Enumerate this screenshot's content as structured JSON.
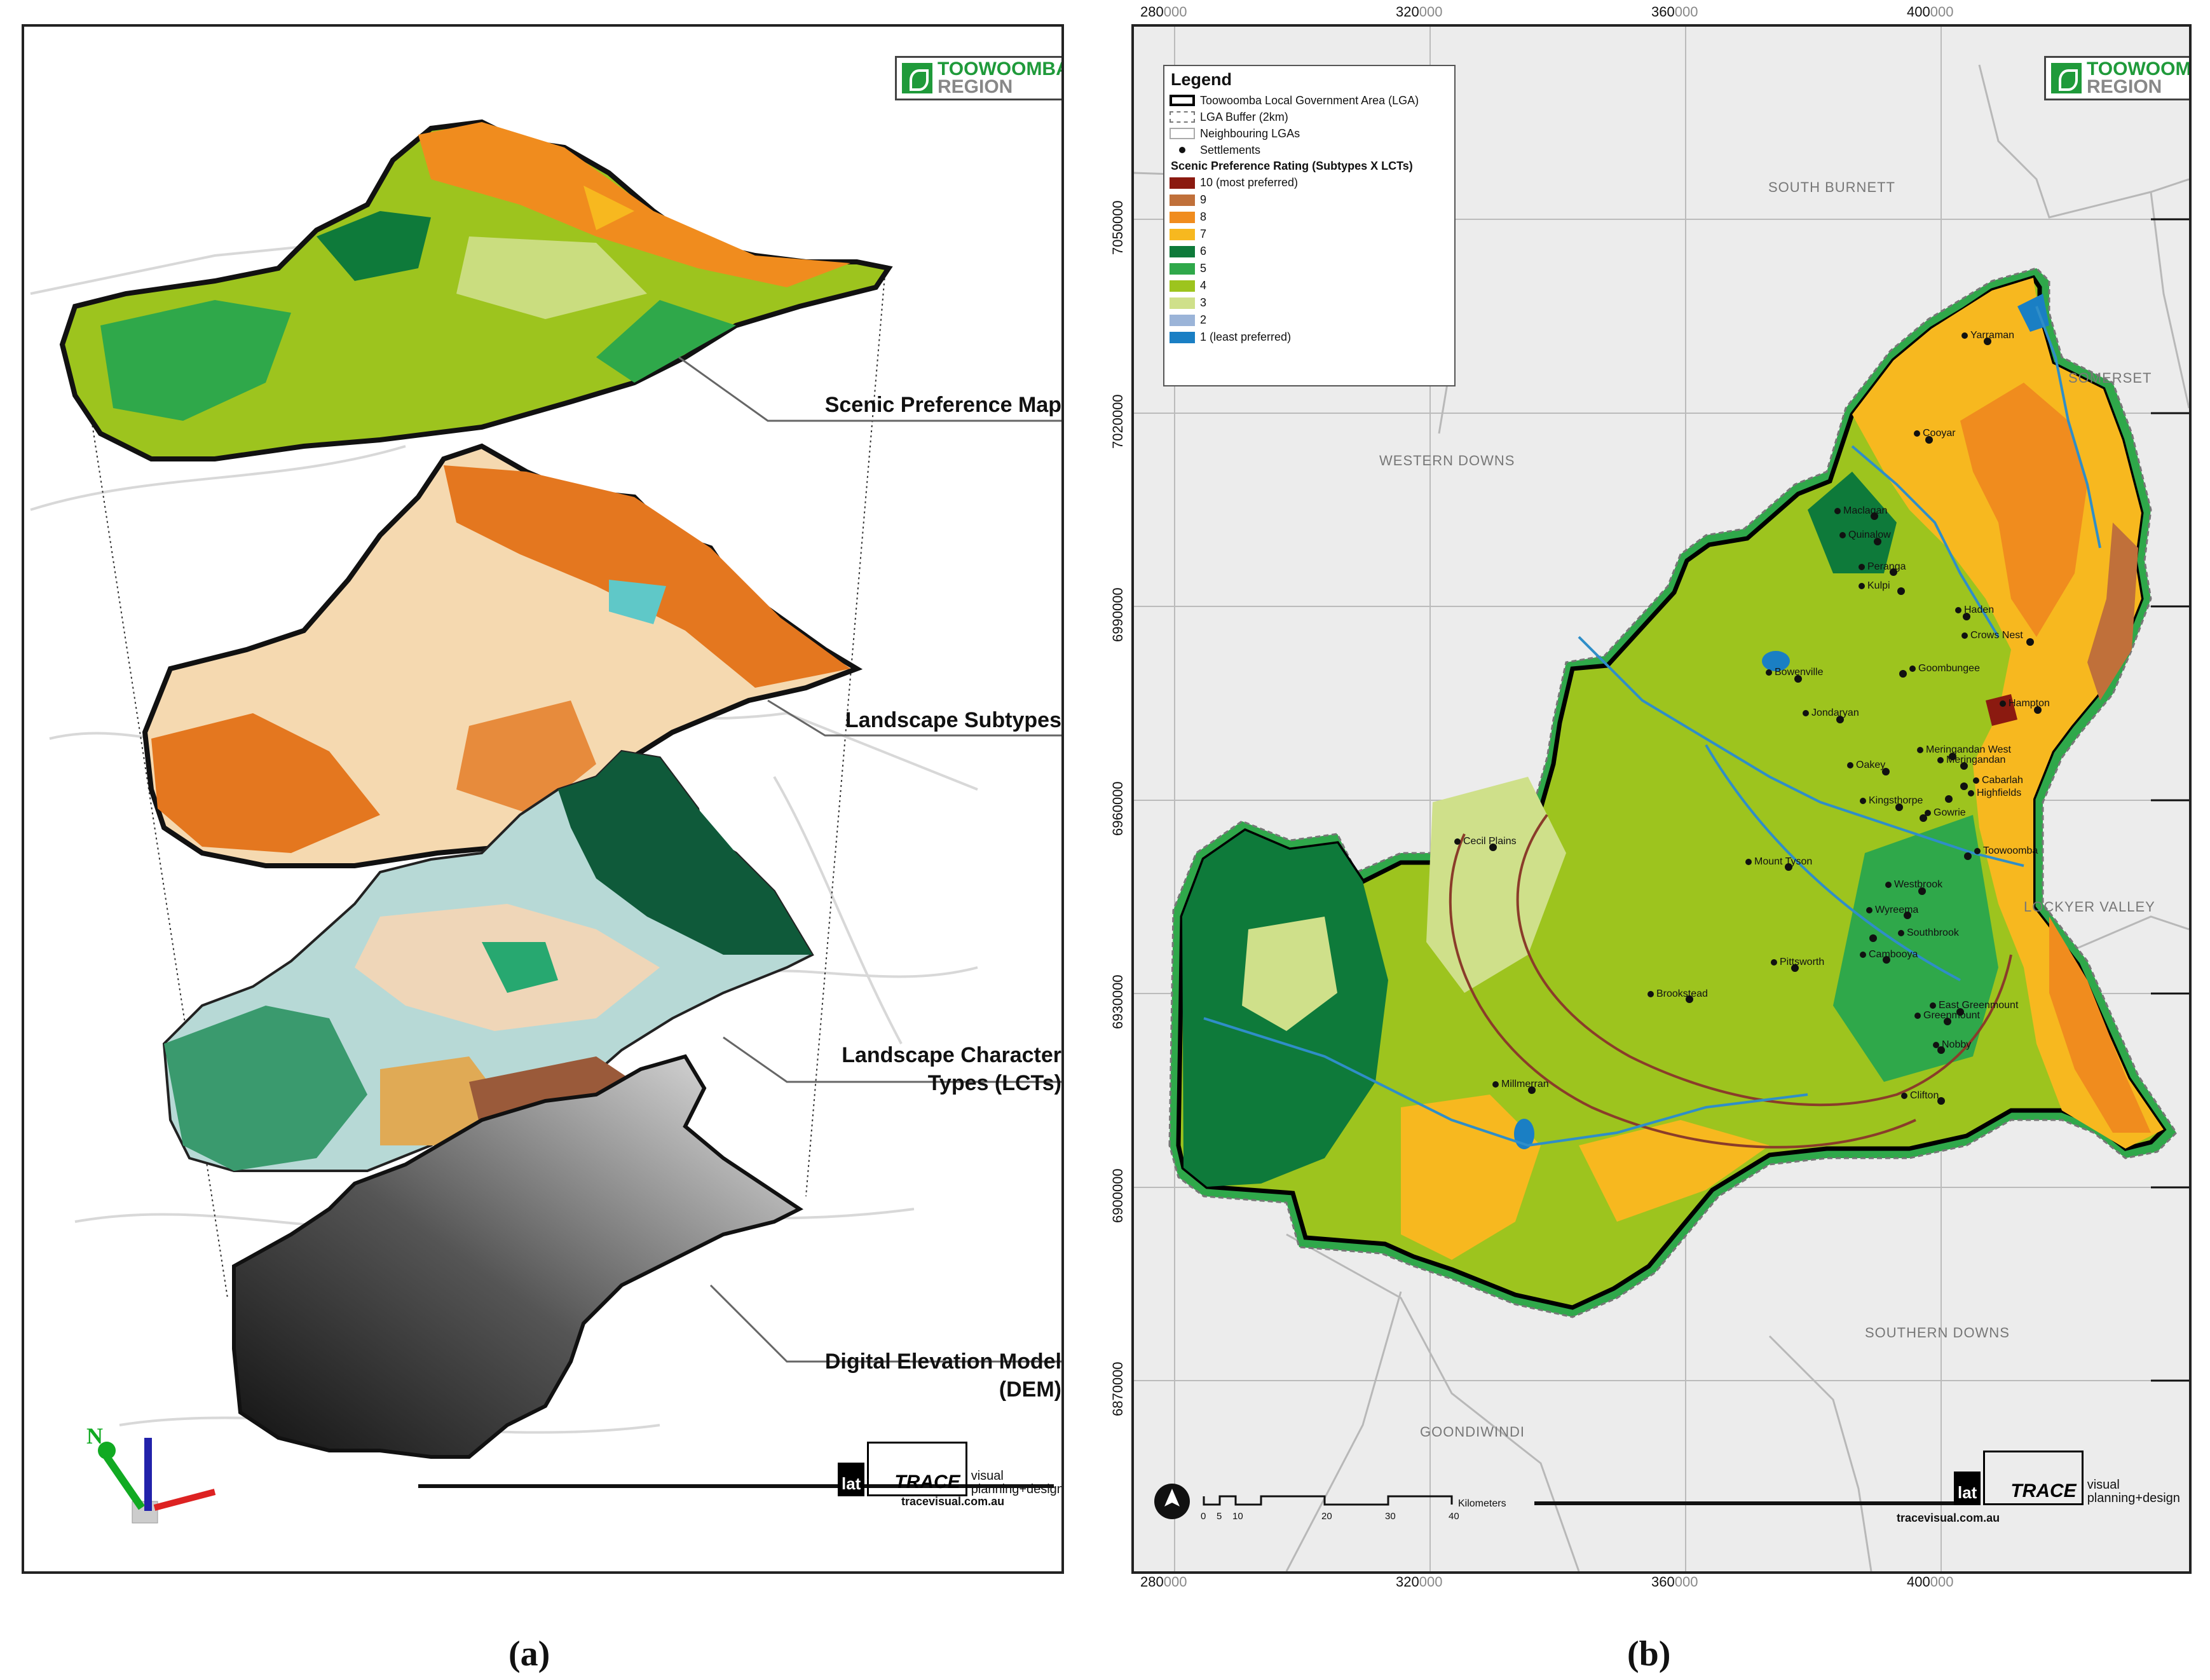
{
  "panel_a": {
    "caption": "(a)",
    "logo": {
      "line1": "TOOWOOMBA",
      "line2": "REGION"
    },
    "layers": [
      {
        "label": "Scenic Preference Map"
      },
      {
        "label": "Landscape Subtypes"
      },
      {
        "label": "Landscape Character Types (LCTs)"
      },
      {
        "label": "Digital Elevation Model (DEM)"
      }
    ],
    "north_label": "N",
    "trace": {
      "lat": "lat",
      "trace": "TRACE",
      "tagline1": "visual",
      "tagline2": "planning+design",
      "url": "tracevisual.com.au"
    }
  },
  "panel_b": {
    "caption": "(b)",
    "logo": {
      "line1": "TOOWOOMBA",
      "line2": "REGION"
    },
    "legend": {
      "title": "Legend",
      "items": [
        {
          "label": "Toowoomba Local Government Area (LGA)"
        },
        {
          "label": "LGA Buffer (2km)"
        },
        {
          "label": "Neighbouring LGAs"
        },
        {
          "label": "Settlements"
        }
      ],
      "rating_title": "Scenic Preference Rating (Subtypes X LCTs)",
      "ratings": [
        {
          "label": "10 (most preferred)",
          "color": "#8b1a10"
        },
        {
          "label": "9",
          "color": "#c0703a"
        },
        {
          "label": "8",
          "color": "#f08c1e"
        },
        {
          "label": "7",
          "color": "#f7b81f"
        },
        {
          "label": "6",
          "color": "#0e7a3a"
        },
        {
          "label": "5",
          "color": "#2fa84a"
        },
        {
          "label": "4",
          "color": "#9dc41e"
        },
        {
          "label": "3",
          "color": "#cfe08a"
        },
        {
          "label": "2",
          "color": "#9bb4d8"
        },
        {
          "label": "1 (least preferred)",
          "color": "#1a7fc4"
        }
      ]
    },
    "x_ticks_top": [
      {
        "major": "280",
        "minor": "000"
      },
      {
        "major": "320",
        "minor": "000"
      },
      {
        "major": "360",
        "minor": "000"
      },
      {
        "major": "400",
        "minor": "000"
      }
    ],
    "x_ticks_bottom": [
      {
        "major": "280",
        "minor": "000"
      },
      {
        "major": "320",
        "minor": "000"
      },
      {
        "major": "360",
        "minor": "000"
      },
      {
        "major": "400",
        "minor": "000"
      }
    ],
    "y_ticks": [
      {
        "major": "7050",
        "minor": "000"
      },
      {
        "major": "7020",
        "minor": "000"
      },
      {
        "major": "6990",
        "minor": "000"
      },
      {
        "major": "6960",
        "minor": "000"
      },
      {
        "major": "6930",
        "minor": "000"
      },
      {
        "major": "6900",
        "minor": "000"
      },
      {
        "major": "6870",
        "minor": "000"
      }
    ],
    "regions": [
      {
        "name": "SOUTH BURNETT"
      },
      {
        "name": "SOMERSET"
      },
      {
        "name": "WESTERN DOWNS"
      },
      {
        "name": "LOCKYER VALLEY"
      },
      {
        "name": "SOUTHERN DOWNS"
      },
      {
        "name": "GOONDIWINDI"
      }
    ],
    "settlements": [
      {
        "name": "Yarraman"
      },
      {
        "name": "Cooyar"
      },
      {
        "name": "Maclagan"
      },
      {
        "name": "Quinalow"
      },
      {
        "name": "Peranga"
      },
      {
        "name": "Kulpi"
      },
      {
        "name": "Haden"
      },
      {
        "name": "Crows Nest"
      },
      {
        "name": "Bowenville"
      },
      {
        "name": "Goombungee"
      },
      {
        "name": "Jondaryan"
      },
      {
        "name": "Hampton"
      },
      {
        "name": "Meringandan West"
      },
      {
        "name": "Meringandan"
      },
      {
        "name": "Oakey"
      },
      {
        "name": "Cabarlah"
      },
      {
        "name": "Highfields"
      },
      {
        "name": "Kingsthorpe"
      },
      {
        "name": "Gowrie"
      },
      {
        "name": "Cecil Plains"
      },
      {
        "name": "Toowoomba"
      },
      {
        "name": "Mount Tyson"
      },
      {
        "name": "Westbrook"
      },
      {
        "name": "Wyreema"
      },
      {
        "name": "Southbrook"
      },
      {
        "name": "Cambooya"
      },
      {
        "name": "Pittsworth"
      },
      {
        "name": "Brookstead"
      },
      {
        "name": "East Greenmount"
      },
      {
        "name": "Greenmount"
      },
      {
        "name": "Nobby"
      },
      {
        "name": "Millmerran"
      },
      {
        "name": "Clifton"
      }
    ],
    "scale": {
      "ticks": [
        "0",
        "5",
        "10",
        "20",
        "30",
        "40"
      ],
      "unit": "Kilometers"
    },
    "trace": {
      "lat": "lat",
      "trace": "TRACE",
      "tagline1": "visual",
      "tagline2": "planning+design",
      "url": "tracevisual.com.au"
    }
  }
}
